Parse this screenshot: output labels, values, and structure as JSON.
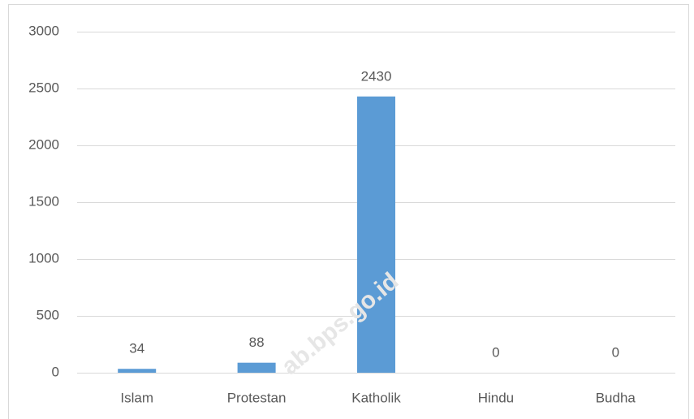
{
  "chart_data": {
    "type": "bar",
    "categories": [
      "Islam",
      "Protestan",
      "Katholik",
      "Hindu",
      "Budha"
    ],
    "values": [
      34,
      88,
      2430,
      0,
      0
    ],
    "color": "#5b9bd5",
    "ylim": [
      0,
      3000
    ],
    "yticks": [
      0,
      500,
      1000,
      1500,
      2000,
      2500,
      3000
    ],
    "grid": true,
    "watermark": "ab.bps.go.id"
  }
}
